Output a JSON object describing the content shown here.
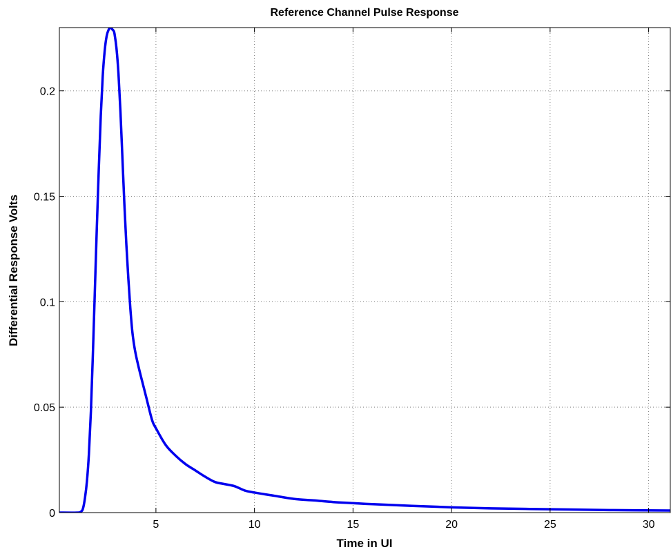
{
  "chart_data": {
    "type": "line",
    "title": "Reference Channel Pulse Response",
    "xlabel": "Time in UI",
    "ylabel": "Differential Response Volts",
    "xlim": [
      0.1,
      31.1
    ],
    "ylim": [
      0,
      0.23
    ],
    "xticks": [
      5,
      10,
      15,
      20,
      25,
      30
    ],
    "xtick_labels": [
      "5",
      "10",
      "15",
      "20",
      "25",
      "30"
    ],
    "yticks": [
      0,
      0.05,
      0.1,
      0.15,
      0.2
    ],
    "ytick_labels": [
      "0",
      "0.05",
      "0.1",
      "0.15",
      "0.2"
    ],
    "grid": true,
    "legend": "none",
    "series": [
      {
        "color": "#0000ee",
        "x": [
          0.1,
          1.0,
          1.2,
          1.3,
          1.4,
          1.5,
          1.6,
          1.7,
          1.8,
          1.9,
          2.0,
          2.1,
          2.2,
          2.3,
          2.4,
          2.5,
          2.6,
          2.7,
          2.8,
          2.85,
          2.9,
          3.0,
          3.1,
          3.2,
          3.3,
          3.4,
          3.5,
          3.6,
          3.7,
          3.8,
          3.9,
          4.0,
          4.2,
          4.5,
          4.8,
          5.0,
          5.5,
          6.0,
          6.5,
          7.0,
          7.5,
          8.0,
          8.5,
          9.0,
          9.5,
          10.0,
          11.0,
          12.0,
          13.0,
          14.0,
          15.0,
          16.0,
          18.0,
          20.0,
          22.0,
          25.0,
          28.0,
          31.1
        ],
        "y": [
          0.0,
          0.0,
          0.0005,
          0.002,
          0.007,
          0.015,
          0.028,
          0.048,
          0.075,
          0.105,
          0.135,
          0.163,
          0.188,
          0.207,
          0.219,
          0.226,
          0.229,
          0.23,
          0.229,
          0.2285,
          0.227,
          0.22,
          0.208,
          0.19,
          0.168,
          0.146,
          0.127,
          0.111,
          0.097,
          0.086,
          0.079,
          0.074,
          0.066,
          0.055,
          0.044,
          0.04,
          0.032,
          0.027,
          0.023,
          0.02,
          0.017,
          0.0145,
          0.0135,
          0.0125,
          0.0105,
          0.0095,
          0.008,
          0.0065,
          0.0058,
          0.005,
          0.0045,
          0.004,
          0.0032,
          0.0025,
          0.002,
          0.0016,
          0.0012,
          0.001
        ]
      }
    ]
  }
}
